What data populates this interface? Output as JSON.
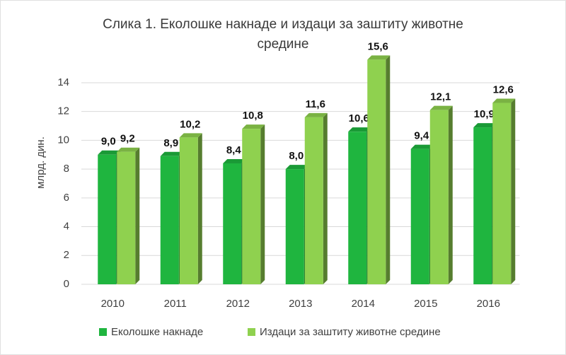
{
  "chart_data": {
    "type": "bar",
    "title": "Слика 1. Еколошке накнаде и издаци за заштиту животне средине",
    "y_label": "млрд. дин.",
    "categories": [
      "2010",
      "2011",
      "2012",
      "2013",
      "2014",
      "2015",
      "2016"
    ],
    "series": [
      {
        "name": "Еколошке накнаде",
        "color": "#1fb53f",
        "values": [
          9.0,
          8.9,
          8.4,
          8.0,
          10.6,
          9.4,
          10.9
        ],
        "value_labels": [
          "9,0",
          "8,9",
          "8,4",
          "8,0",
          "10,6",
          "9,4",
          "10,9"
        ]
      },
      {
        "name": "Издаци за заштиту животне средине",
        "color": "#8fd14f",
        "values": [
          9.2,
          10.2,
          10.8,
          11.6,
          15.6,
          12.1,
          12.6
        ],
        "value_labels": [
          "9,2",
          "10,2",
          "10,8",
          "11,6",
          "15,6",
          "12,1",
          "12,6"
        ]
      }
    ],
    "ylim": [
      0,
      16
    ],
    "yticks": [
      0,
      2,
      4,
      6,
      8,
      10,
      12,
      14
    ],
    "grid": true
  }
}
